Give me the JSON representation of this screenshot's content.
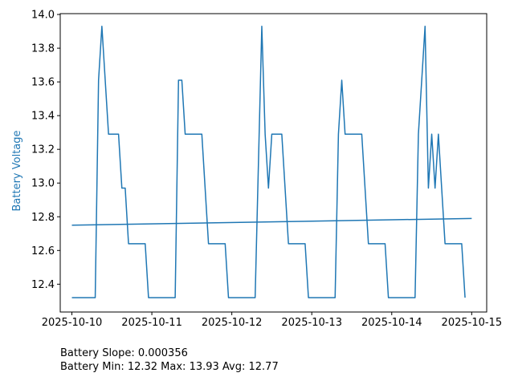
{
  "chart_data": {
    "type": "line",
    "title": "",
    "xlabel": "",
    "ylabel": "Battery Voltage",
    "xlim": [
      "2025-10-09T20:30",
      "2025-10-15T04:30"
    ],
    "ylim": [
      12.235,
      14.005
    ],
    "x_ticks": [
      "2025-10-10",
      "2025-10-11",
      "2025-10-12",
      "2025-10-13",
      "2025-10-14",
      "2025-10-15"
    ],
    "y_ticks": [
      "12.4",
      "12.6",
      "12.8",
      "13.0",
      "13.2",
      "13.4",
      "13.6",
      "13.8",
      "14.0"
    ],
    "grid": false,
    "colors": {
      "line": "#1f77b4",
      "ylabel": "#1f77b4"
    },
    "series": [
      {
        "x": [
          "2025-10-10T00:00",
          "2025-10-10T07:00",
          "2025-10-10T08:00",
          "2025-10-10T09:00",
          "2025-10-10T11:00",
          "2025-10-10T14:00",
          "2025-10-10T15:00",
          "2025-10-10T16:00",
          "2025-10-10T17:00",
          "2025-10-10T22:00",
          "2025-10-10T23:00",
          "2025-10-11T07:00",
          "2025-10-11T08:00",
          "2025-10-11T09:00",
          "2025-10-11T10:00",
          "2025-10-11T15:00",
          "2025-10-11T17:00",
          "2025-10-11T22:00",
          "2025-10-11T23:00",
          "2025-10-12T07:00",
          "2025-10-12T09:00",
          "2025-10-12T10:00",
          "2025-10-12T11:00",
          "2025-10-12T12:00",
          "2025-10-12T15:00",
          "2025-10-12T17:00",
          "2025-10-12T22:00",
          "2025-10-12T23:00",
          "2025-10-13T07:00",
          "2025-10-13T08:00",
          "2025-10-13T09:00",
          "2025-10-13T10:00",
          "2025-10-13T15:00",
          "2025-10-13T17:00",
          "2025-10-13T22:00",
          "2025-10-13T23:00",
          "2025-10-14T07:00",
          "2025-10-14T08:00",
          "2025-10-14T10:00",
          "2025-10-14T11:00",
          "2025-10-14T12:00",
          "2025-10-14T13:00",
          "2025-10-14T14:00",
          "2025-10-14T16:00",
          "2025-10-14T21:00",
          "2025-10-14T22:00"
        ],
        "values": [
          12.32,
          12.32,
          13.61,
          13.93,
          13.29,
          13.29,
          12.97,
          12.97,
          12.64,
          12.64,
          12.32,
          12.32,
          13.61,
          13.61,
          13.29,
          13.29,
          12.64,
          12.64,
          12.32,
          12.32,
          13.93,
          13.29,
          12.97,
          13.29,
          13.29,
          12.64,
          12.64,
          12.32,
          12.32,
          13.29,
          13.61,
          13.29,
          13.29,
          12.64,
          12.64,
          12.32,
          12.32,
          13.29,
          13.93,
          12.97,
          13.29,
          12.97,
          13.29,
          12.64,
          12.64,
          12.32
        ]
      },
      {
        "x": [
          "2025-10-10T00:00",
          "2025-10-15T00:00"
        ],
        "values": [
          12.75,
          12.79
        ]
      }
    ]
  },
  "footer": {
    "slope_text": "Battery Slope: 0.000356",
    "stats_text": "Battery Min: 12.32 Max: 13.93 Avg: 12.77"
  }
}
